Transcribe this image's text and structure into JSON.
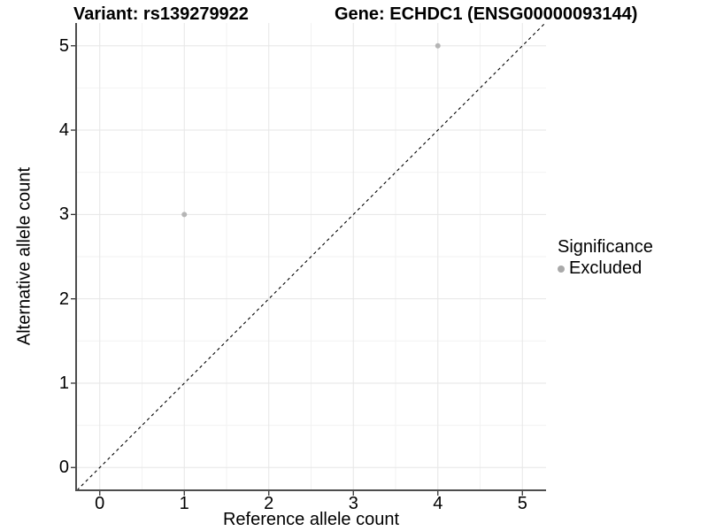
{
  "chart_data": {
    "type": "scatter",
    "title_left": "Variant: rs139279922",
    "title_right": "Gene: ECHDC1 (ENSG00000093144)",
    "xlabel": "Reference allele count",
    "ylabel": "Alternative allele count",
    "xlim": [
      -0.28,
      5.28
    ],
    "ylim": [
      -0.27,
      5.27
    ],
    "x_ticks": [
      0,
      1,
      2,
      3,
      4,
      5
    ],
    "y_ticks": [
      0,
      1,
      2,
      3,
      4,
      5
    ],
    "x_minor_ticks": [
      0.5,
      1.5,
      2.5,
      3.5,
      4.5
    ],
    "y_minor_ticks": [
      0.5,
      1.5,
      2.5,
      3.5,
      4.5
    ],
    "grid": true,
    "series": [
      {
        "name": "Excluded",
        "points": [
          {
            "x": 1,
            "y": 3
          },
          {
            "x": 4,
            "y": 5
          }
        ],
        "color": "#b5b5b5"
      }
    ],
    "reference_line": {
      "kind": "diagonal-identity",
      "style": "dashed",
      "color": "#000000"
    },
    "legend": {
      "title": "Significance",
      "position": "right",
      "items": [
        {
          "label": "Excluded",
          "color": "#a9a9a9"
        }
      ]
    },
    "colors": {
      "grid_major": "#e6e6e6",
      "grid_minor": "#f2f2f2",
      "axis_line": "#4d4d4d",
      "tick_mark": "#333333",
      "background": "#ffffff"
    }
  }
}
